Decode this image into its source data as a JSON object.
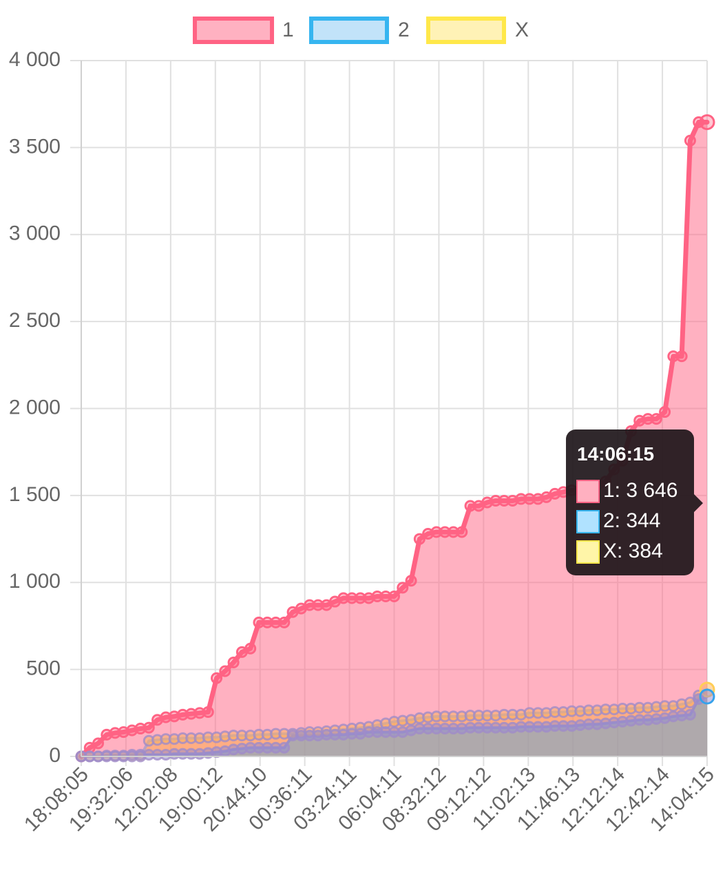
{
  "chart_data": {
    "type": "area",
    "legend": {
      "position": "top"
    },
    "grid": true,
    "ylim": [
      0,
      4000
    ],
    "y_ticks": [
      "0",
      "500",
      "1 000",
      "1 500",
      "2 000",
      "2 500",
      "3 000",
      "3 500",
      "4 000"
    ],
    "y_tick_values": [
      0,
      500,
      1000,
      1500,
      2000,
      2500,
      3000,
      3500,
      4000
    ],
    "x_tick_labels": [
      "18:08:05",
      "19:32:06",
      "12:02:08",
      "19:00:12",
      "20:44:10",
      "00:36:11",
      "03:24:11",
      "06:04:11",
      "08:32:12",
      "09:12:12",
      "11:02:13",
      "11:46:13",
      "12:12:14",
      "12:42:14",
      "14:04:15"
    ],
    "point_count": 75,
    "series": [
      {
        "name": "1",
        "color": "#ff6384",
        "fill": "rgba(255,99,132,0.5)",
        "values": [
          0,
          50,
          75,
          125,
          135,
          140,
          150,
          160,
          165,
          210,
          225,
          230,
          240,
          245,
          250,
          255,
          450,
          490,
          540,
          600,
          620,
          770,
          770,
          770,
          770,
          830,
          850,
          870,
          870,
          870,
          890,
          910,
          910,
          910,
          910,
          920,
          920,
          920,
          970,
          1010,
          1250,
          1280,
          1290,
          1290,
          1290,
          1290,
          1440,
          1440,
          1460,
          1470,
          1470,
          1470,
          1480,
          1480,
          1480,
          1490,
          1510,
          1520,
          1530,
          1530,
          1540,
          1560,
          1580,
          1650,
          1700,
          1870,
          1930,
          1940,
          1940,
          1980,
          2300,
          2300,
          3540,
          3646,
          3646
        ]
      },
      {
        "name": "2",
        "color": "#36a2eb",
        "fill": "rgba(54,162,235,0.4)",
        "values": [
          0,
          0,
          0,
          5,
          5,
          5,
          10,
          10,
          10,
          10,
          10,
          15,
          15,
          15,
          15,
          20,
          25,
          30,
          40,
          45,
          50,
          50,
          50,
          50,
          50,
          120,
          120,
          120,
          120,
          125,
          125,
          125,
          130,
          130,
          140,
          140,
          140,
          140,
          140,
          150,
          160,
          160,
          160,
          160,
          160,
          160,
          165,
          165,
          165,
          165,
          165,
          165,
          170,
          170,
          170,
          170,
          175,
          175,
          175,
          180,
          185,
          185,
          190,
          195,
          200,
          205,
          210,
          210,
          215,
          220,
          230,
          235,
          240,
          330,
          344
        ]
      },
      {
        "name": "X",
        "color": "#ffce56",
        "fill": "rgba(255,170,80,0.55)",
        "values": [
          0,
          0,
          0,
          0,
          0,
          0,
          0,
          0,
          90,
          95,
          100,
          100,
          105,
          105,
          105,
          110,
          110,
          115,
          120,
          120,
          120,
          125,
          125,
          130,
          130,
          130,
          135,
          140,
          140,
          145,
          150,
          155,
          160,
          165,
          170,
          180,
          190,
          200,
          205,
          210,
          220,
          225,
          230,
          230,
          230,
          230,
          235,
          235,
          235,
          235,
          240,
          240,
          240,
          250,
          250,
          250,
          255,
          255,
          260,
          260,
          265,
          265,
          270,
          270,
          275,
          275,
          280,
          280,
          285,
          290,
          290,
          300,
          310,
          350,
          384
        ]
      }
    ],
    "tooltip": {
      "title": "14:06:15",
      "lines": [
        "1: 3 646",
        "2: 344",
        "X: 384"
      ]
    }
  }
}
